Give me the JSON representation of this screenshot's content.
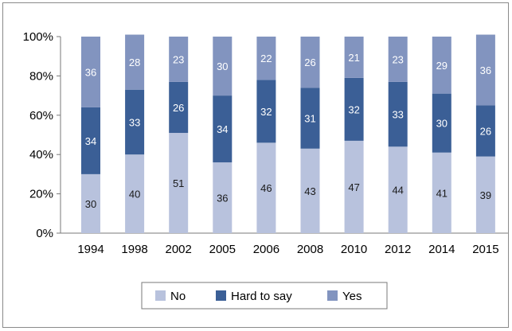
{
  "chart_data": {
    "type": "bar",
    "stacked": true,
    "percent": true,
    "categories": [
      "1994",
      "1998",
      "2002",
      "2005",
      "2006",
      "2008",
      "2010",
      "2012",
      "2014",
      "2015"
    ],
    "series": [
      {
        "name": "No",
        "values": [
          30,
          40,
          51,
          36,
          46,
          43,
          47,
          44,
          41,
          39
        ],
        "color": "#b8c2dd",
        "label_color": "#1a1a1a"
      },
      {
        "name": "Hard to say",
        "values": [
          34,
          33,
          26,
          34,
          32,
          31,
          32,
          33,
          30,
          26
        ],
        "color": "#3b5f96",
        "label_color": "#ffffff"
      },
      {
        "name": "Yes",
        "values": [
          36,
          28,
          23,
          30,
          22,
          26,
          21,
          23,
          29,
          36
        ],
        "color": "#8294bf",
        "label_color": "#ffffff"
      }
    ],
    "y_ticks": [
      "0%",
      "20%",
      "40%",
      "60%",
      "80%",
      "100%"
    ],
    "ylim": [
      0,
      100
    ],
    "grid": false,
    "legend_position": "bottom"
  }
}
